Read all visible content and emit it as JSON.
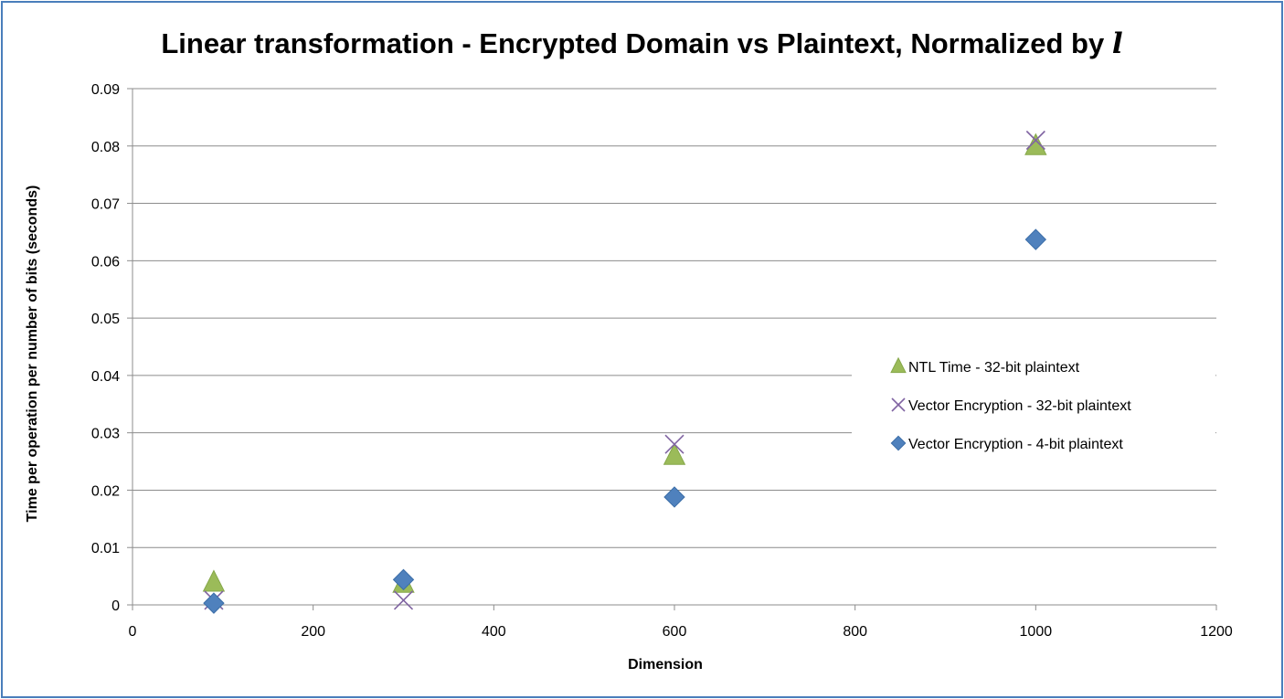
{
  "chart_data": {
    "type": "scatter",
    "title": "Linear transformation - Encrypted Domain vs Plaintext, Normalized by",
    "title_symbol": "l",
    "xlabel": "Dimension",
    "ylabel": "Time per operation per number of bits (seconds)",
    "xlim": [
      0,
      1200
    ],
    "ylim": [
      0,
      0.09
    ],
    "x_ticks": [
      "0",
      "200",
      "400",
      "600",
      "800",
      "1000",
      "1200"
    ],
    "y_ticks": [
      "0",
      "0.01",
      "0.02",
      "0.03",
      "0.04",
      "0.05",
      "0.06",
      "0.07",
      "0.08",
      "0.09"
    ],
    "grid": "horizontal",
    "legend_position": "right",
    "series": [
      {
        "name": "NTL Time - 32-bit plaintext",
        "marker": "triangle",
        "color": "#9bbb59",
        "points": [
          [
            90,
            0.0039
          ],
          [
            300,
            0.0037
          ],
          [
            600,
            0.026
          ],
          [
            1000,
            0.08
          ]
        ]
      },
      {
        "name": "Vector Encryption - 32-bit plaintext",
        "marker": "x",
        "color": "#8064a2",
        "points": [
          [
            90,
            0.0008
          ],
          [
            300,
            0.0008
          ],
          [
            600,
            0.028
          ],
          [
            1000,
            0.081
          ]
        ]
      },
      {
        "name": "Vector Encryption - 4-bit plaintext",
        "marker": "diamond",
        "color": "#4f81bd",
        "points": [
          [
            90,
            0.0003
          ],
          [
            300,
            0.0044
          ],
          [
            600,
            0.0188
          ],
          [
            1000,
            0.0637
          ]
        ]
      }
    ]
  }
}
